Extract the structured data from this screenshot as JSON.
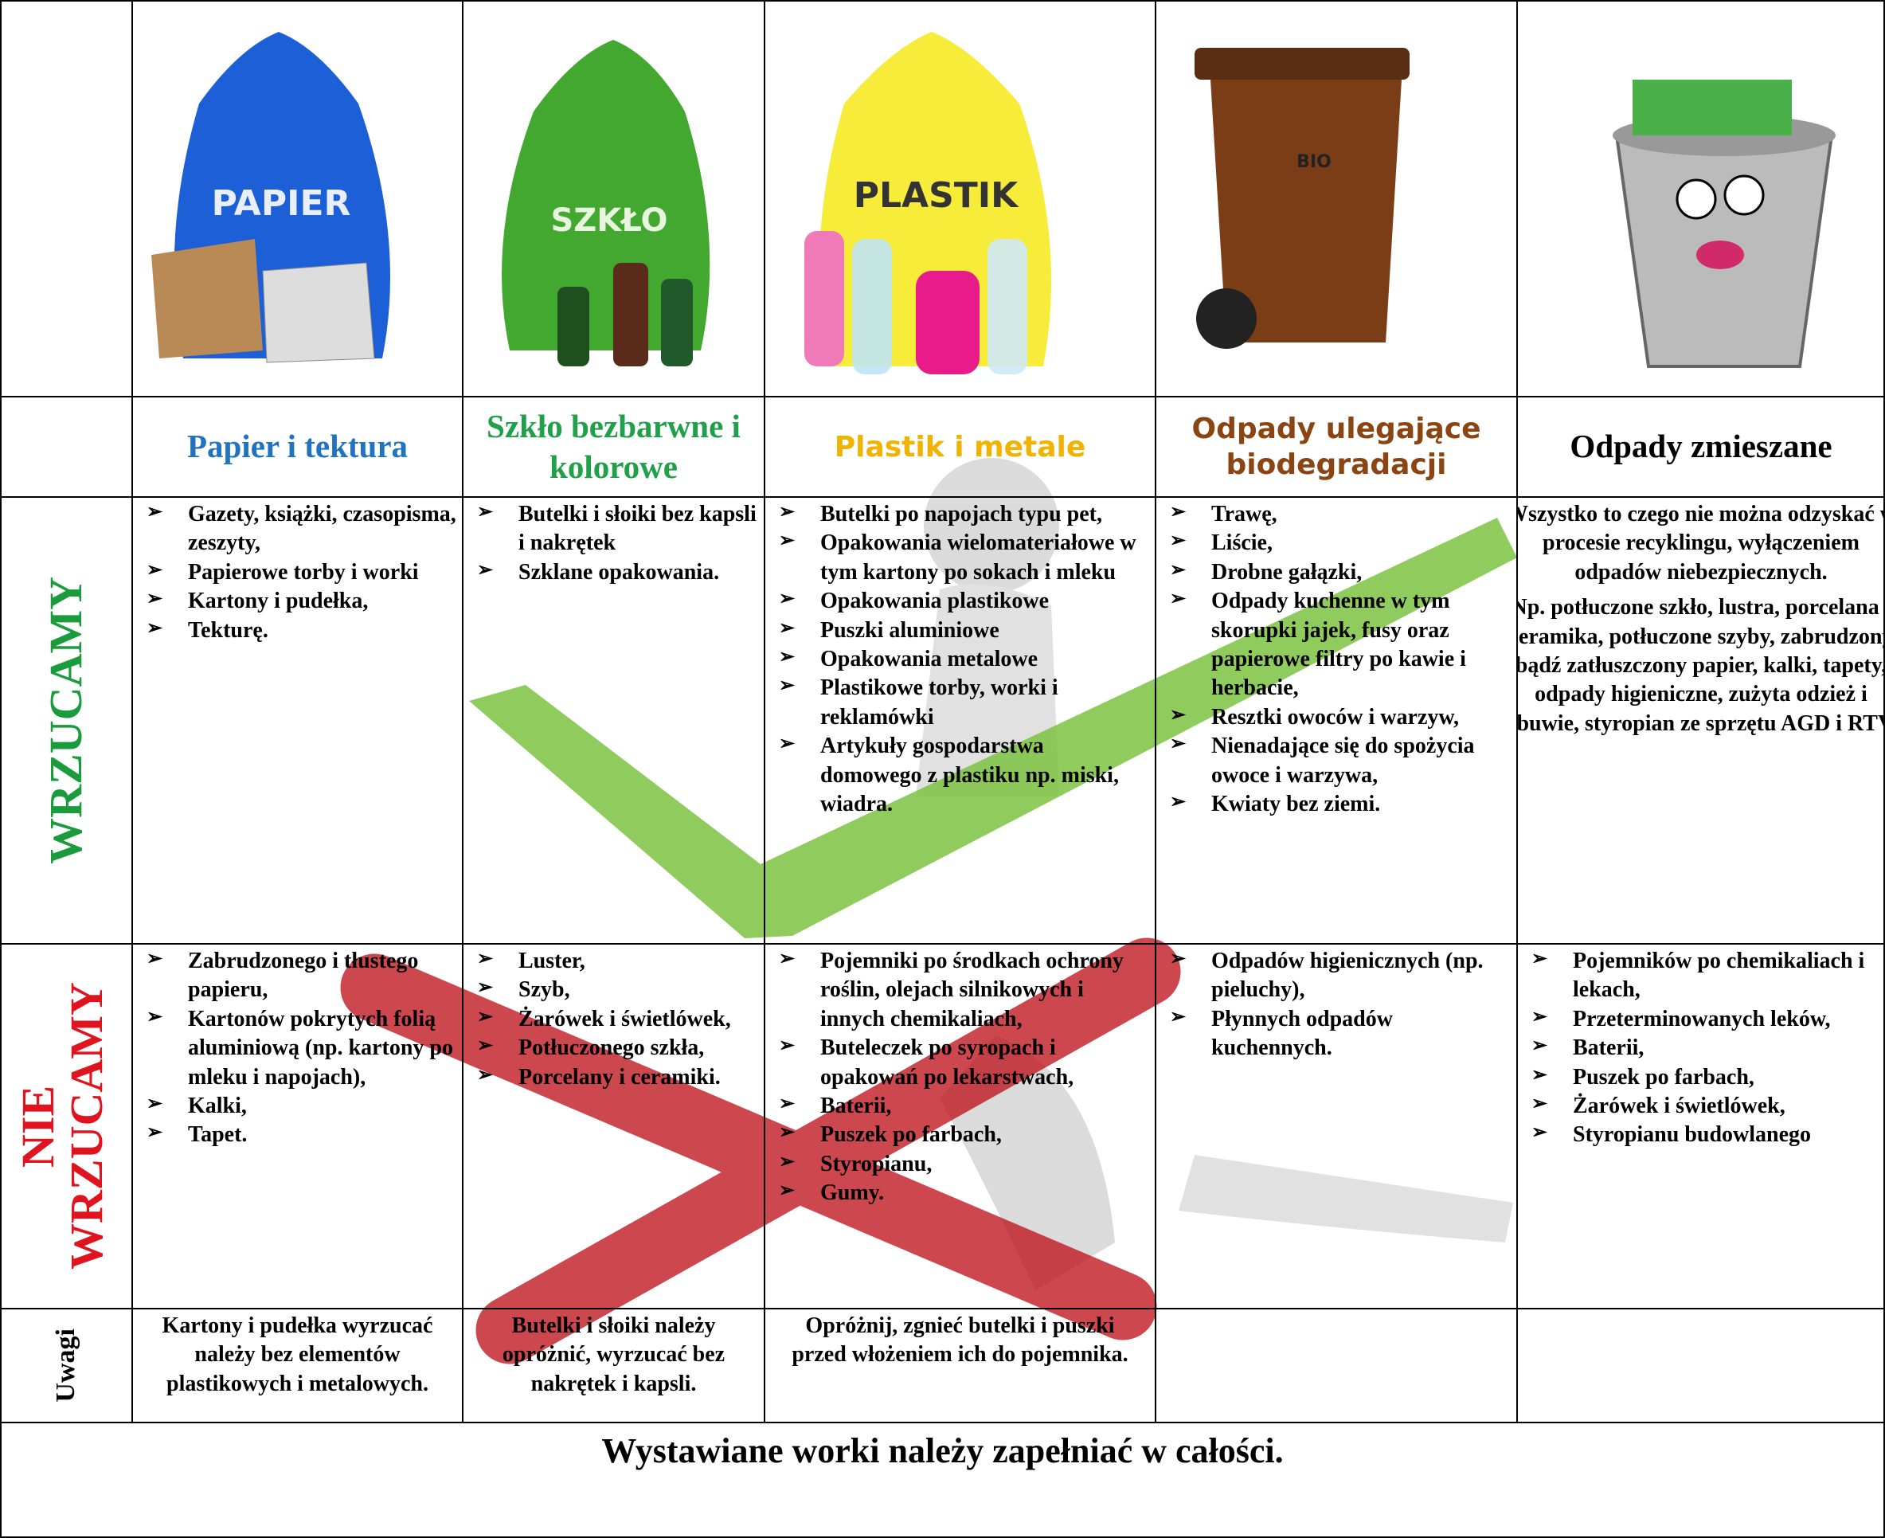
{
  "images": {
    "paper_bag": "PAPIER",
    "glass_bag": "SZKŁO",
    "plastic_bag": "PLASTIK",
    "bio_bin": "BIO"
  },
  "row_labels": {
    "accept": "WRZUCAMY",
    "reject": "NIE WRZUCAMY",
    "notes": "Uwagi"
  },
  "columns": [
    {
      "header": "Papier i tektura",
      "accept": [
        "Gazety, książki, czasopisma, zeszyty,",
        "Papierowe torby i worki",
        "Kartony i pudełka,",
        "Tekturę."
      ],
      "reject": [
        "Zabrudzonego i tłustego papieru,",
        "Kartonów pokrytych folią aluminiową (np. kartony po mleku i napojach),",
        "Kalki,",
        "Tapet."
      ]
    },
    {
      "header": "Szkło bezbarwne i kolorowe",
      "accept": [
        "Butelki i słoiki bez kapsli i nakrętek",
        "Szklane opakowania."
      ],
      "reject": [
        "Luster,",
        "Szyb,",
        "Żarówek i świetlówek,",
        "Potłuczonego szkła,",
        "Porcelany i ceramiki."
      ]
    },
    {
      "header": "Plastik i metale",
      "accept": [
        "Butelki po napojach typu pet,",
        "Opakowania wielomateriałowe w tym kartony po sokach i mleku",
        "Opakowania plastikowe",
        "Puszki aluminiowe",
        "Opakowania metalowe",
        "Plastikowe torby, worki i reklamówki",
        "Artykuły gospodarstwa domowego z plastiku np. miski, wiadra."
      ],
      "reject": [
        "Pojemniki po środkach ochrony roślin, olejach silnikowych i innych chemikaliach,",
        "Buteleczek po syropach i opakowań po lekarstwach,",
        "Baterii,",
        "Puszek po farbach,",
        "Styropianu,",
        "Gumy."
      ]
    },
    {
      "header": "Odpady ulegające biodegradacji",
      "accept": [
        "Trawę,",
        "Liście,",
        "Drobne gałązki,",
        "Odpady kuchenne w tym skorupki jajek, fusy oraz papierowe filtry po kawie i herbacie,",
        "Resztki owoców i warzyw,",
        "Nienadające się do spożycia owoce i warzywa,",
        "Kwiaty bez ziemi."
      ],
      "reject": [
        "Odpadów higienicznych (np. pieluchy),",
        "Płynnych odpadów kuchennych."
      ]
    },
    {
      "header": "Odpady zmieszane",
      "accept_text": [
        "Wszystko to czego nie można odzyskać w procesie recyklingu, wyłączeniem odpadów niebezpiecznych.",
        "Np. potłuczone szkło, lustra, porcelana i ceramika, potłuczone szyby, zabrudzony bądź zatłuszczony papier, kalki, tapety, odpady higieniczne, zużyta odzież i obuwie, styropian ze sprzętu AGD i RTV."
      ],
      "reject": [
        "Pojemników po chemikaliach i lekach,",
        "Przeterminowanych leków,",
        "Baterii,",
        "Puszek po farbach,",
        "Żarówek i świetlówek,",
        "Styropianu budowlanego"
      ]
    }
  ],
  "notes": [
    "Kartony i pudełka wyrzucać należy bez elementów plastikowych i metalowych.",
    "Butelki i słoiki należy opróżnić, wyrzucać bez nakrętek i kapsli.",
    "Opróżnij, zgnieć butelki i puszki przed włożeniem ich do pojemnika."
  ],
  "footer": "Wystawiane worki należy zapełniać w całości."
}
